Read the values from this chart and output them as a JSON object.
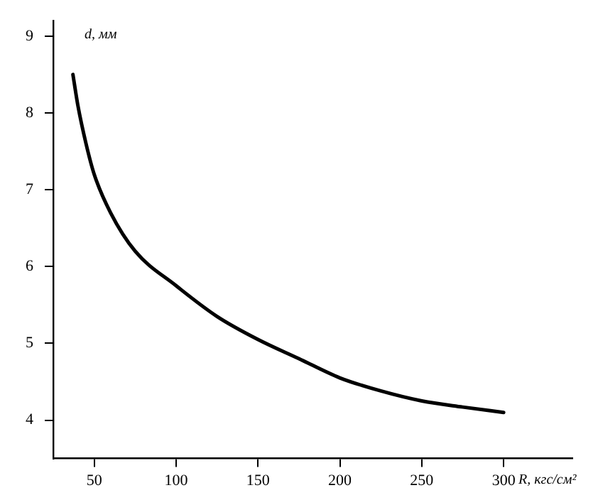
{
  "chart_data": {
    "type": "line",
    "xlabel": "R, кгс/см²",
    "ylabel": "d, мм",
    "series": [
      {
        "color": "#000000",
        "x": [
          37,
          40,
          45,
          50,
          60,
          75,
          100,
          125,
          150,
          175,
          200,
          225,
          250,
          275,
          300
        ],
        "values": [
          8.5,
          8.1,
          7.6,
          7.2,
          6.7,
          6.2,
          5.75,
          5.35,
          5.05,
          4.8,
          4.55,
          4.38,
          4.25,
          4.17,
          4.1
        ]
      }
    ],
    "xlim": [
      25,
      342
    ],
    "xticks": [
      50,
      100,
      150,
      200,
      250,
      300
    ],
    "ylim": [
      3.5,
      9.2
    ],
    "yticks": [
      4,
      5,
      6,
      7,
      8,
      9
    ],
    "grid": false,
    "legend": false,
    "marker": "none",
    "line_style": "solid"
  }
}
